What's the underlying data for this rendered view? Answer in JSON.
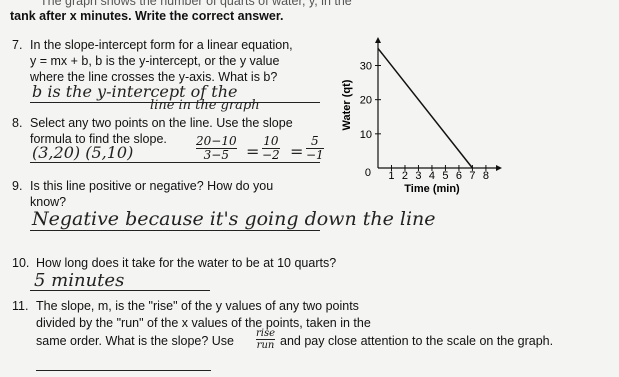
{
  "header": {
    "cut_line": "The graph shows the number of quarts of water, y, in the",
    "line2": "tank after x minutes. Write the correct answer."
  },
  "questions": [
    {
      "number": "7.",
      "lines": [
        "In the slope-intercept form for a linear equation,",
        "y = mx + b, b is the y-intercept, or the y value",
        "where the line crosses the y-axis. What is b?"
      ],
      "answer": [
        "b is the y-intercept of the",
        "line in the graph"
      ]
    },
    {
      "number": "8.",
      "lines": [
        "Select any two points on the line. Use the slope",
        "formula to find the slope."
      ],
      "answer": {
        "points": "(3,20) (5,10)",
        "fractions": [
          {
            "num": "20−10",
            "den": "3−5"
          },
          {
            "num": "10",
            "den": "−2"
          },
          {
            "num": "5",
            "den": "−1"
          }
        ]
      }
    },
    {
      "number": "9.",
      "lines": [
        "Is this line positive or negative? How do you",
        "know?"
      ],
      "answer": [
        "Negative because it's going down the line"
      ]
    },
    {
      "number": "10.",
      "lines": [
        "How long does it take for the water to be at 10 quarts?"
      ],
      "answer": [
        "5 minutes"
      ]
    },
    {
      "number": "11.",
      "lines": [
        "The slope, m, is the \"rise\" of the y values of any two points",
        "divided by the \"run\" of the x values of the points, taken in the"
      ],
      "last_before": "same order. What is the slope? Use",
      "rise": "rise",
      "run": "run",
      "last_after": "and pay close attention to the scale on the graph."
    }
  ],
  "graph": {
    "y_label": "Water (qt)",
    "x_label": "Time (min)",
    "origin_label": "0",
    "xlim": [
      0,
      8.6
    ],
    "ylim": [
      0,
      36
    ],
    "xticks": [
      1,
      2,
      3,
      4,
      5,
      6,
      7,
      8
    ],
    "yticks": [
      10,
      20,
      30
    ],
    "line": {
      "x": [
        0,
        7
      ],
      "y": [
        35,
        0
      ]
    }
  }
}
